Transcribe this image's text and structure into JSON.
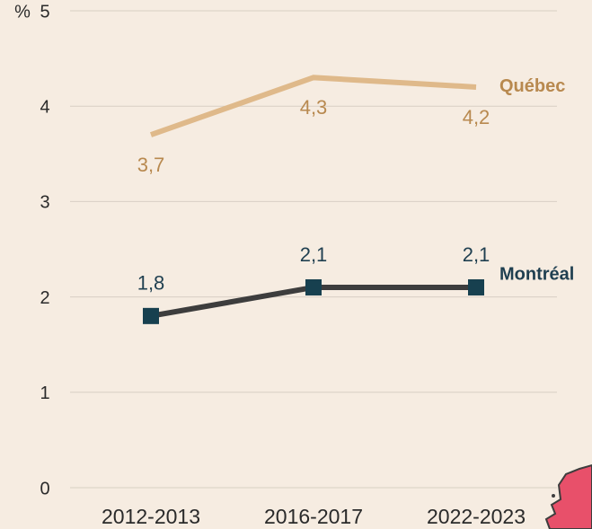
{
  "chart_data": {
    "type": "line",
    "ylabel": "%",
    "categories": [
      "2012-2013",
      "2016-2017",
      "2022-2023"
    ],
    "series": [
      {
        "name": "Québec",
        "color": "#dfb98a",
        "label_color": "#b8894f",
        "values": [
          3.7,
          4.3,
          4.2
        ],
        "value_labels": [
          "3,7",
          "4,3",
          "4,2"
        ],
        "label_position": "below"
      },
      {
        "name": "Montréal",
        "color": "#3d3d3d",
        "label_color": "#1f3f50",
        "marker": "square",
        "marker_color": "#17404f",
        "values": [
          1.8,
          2.1,
          2.1
        ],
        "value_labels": [
          "1,8",
          "2,1",
          "2,1"
        ],
        "label_position": "above"
      }
    ],
    "ylim": [
      0,
      5
    ],
    "yticks": [
      0,
      1,
      2,
      3,
      4,
      5
    ],
    "grid": true
  }
}
